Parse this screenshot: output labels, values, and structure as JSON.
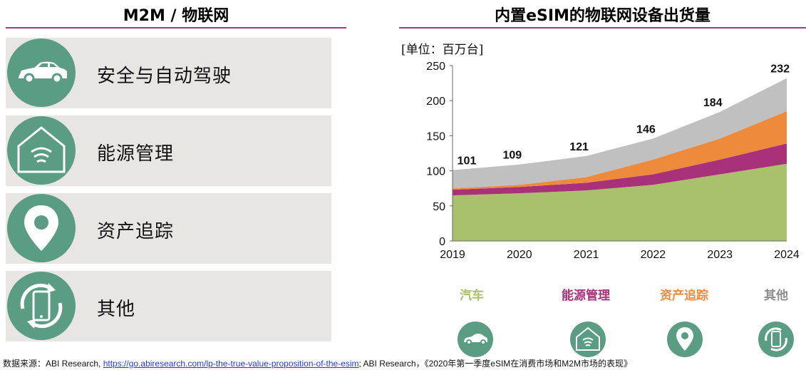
{
  "left_panel": {
    "title": "M2M / 物联网",
    "items": [
      {
        "label": "安全与自动驾驶",
        "icon": "car-icon"
      },
      {
        "label": "能源管理",
        "icon": "smart-home-icon"
      },
      {
        "label": "资产追踪",
        "icon": "location-pin-icon"
      },
      {
        "label": "其他",
        "icon": "phone-rotate-icon"
      }
    ]
  },
  "right_panel": {
    "title": "内置eSIM的物联网设备出货量",
    "unit": "[单位：百万台]"
  },
  "legend": [
    {
      "label": "汽车",
      "color": "#a9c16b",
      "icon": "car-icon"
    },
    {
      "label": "能源管理",
      "color": "#a8317a",
      "icon": "smart-home-icon"
    },
    {
      "label": "资产追踪",
      "color": "#ee8a3c",
      "icon": "location-pin-icon"
    },
    {
      "label": "其他",
      "color": "#8c8c8c",
      "icon": "phone-rotate-icon"
    }
  ],
  "chart_data": {
    "type": "area",
    "stacked": true,
    "x": [
      "2019",
      "2020",
      "2021",
      "2022",
      "2023",
      "2024"
    ],
    "ylim": [
      0,
      250
    ],
    "yticks": [
      0,
      50,
      100,
      150,
      200,
      250
    ],
    "series": [
      {
        "name": "汽车",
        "color": "#a9c16b",
        "values": [
          65,
          68,
          72,
          80,
          95,
          110
        ]
      },
      {
        "name": "能源管理",
        "color": "#a8317a",
        "values": [
          8,
          9,
          11,
          15,
          21,
          29
        ]
      },
      {
        "name": "资产追踪",
        "color": "#ee8a3c",
        "values": [
          2,
          3,
          8,
          21,
          30,
          46
        ]
      },
      {
        "name": "其他",
        "color": "#c0c0c0",
        "values": [
          26,
          29,
          30,
          30,
          38,
          47
        ]
      }
    ],
    "totals": [
      101,
      109,
      121,
      146,
      184,
      232
    ],
    "total_labels": [
      "101",
      "109",
      "121",
      "146",
      "184",
      "232"
    ],
    "grid": false,
    "legend_position": "bottom"
  },
  "source": {
    "prefix": "数据来源：ABI Research, ",
    "link": "https://go.abiresearch.com/lp-the-true-value-proposition-of-the-esim",
    "suffix": "; ABI Research，《2020年第一季度eSIM在消费市场和M2M市场的表现》"
  }
}
